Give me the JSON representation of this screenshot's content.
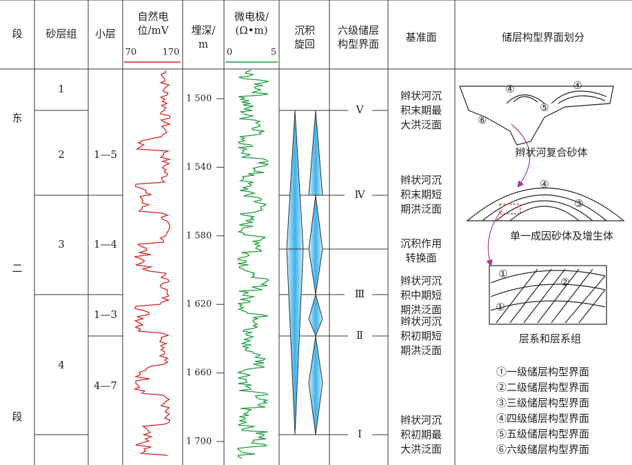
{
  "header": {
    "segment": "段",
    "sand_group": "砂层组",
    "layer": "小层",
    "sp": [
      "自然电",
      "位/mV"
    ],
    "sp_min": "70",
    "sp_max": "170",
    "depth": [
      "埋深/",
      "m"
    ],
    "micro": [
      "微电极/",
      "(Ω•m)"
    ],
    "micro_min": "0",
    "micro_max": "5",
    "cycle": [
      "沉积",
      "旋回"
    ],
    "interface": [
      "六级储层",
      "构型界面"
    ],
    "datum": "基准面",
    "architecture": "储层构型界面划分"
  },
  "segment_chars": [
    "东",
    "二",
    "段"
  ],
  "sand_groups": [
    "1",
    "2",
    "3",
    "4"
  ],
  "layers": [
    "1—5",
    "1—4",
    "1—3",
    "4—7"
  ],
  "depth_ticks": [
    "1 500",
    "1 540",
    "1 580",
    "1 620",
    "1 660",
    "1 700"
  ],
  "interfaces": [
    "Ⅴ",
    "Ⅳ",
    "Ⅲ",
    "Ⅱ",
    "Ⅰ"
  ],
  "datums": [
    [
      "辫状河沉",
      "积末期最",
      "大洪泛面"
    ],
    [
      "辫状河沉",
      "积末期短",
      "期洪泛面"
    ],
    [
      "沉积作用",
      "转换面"
    ],
    [
      "辫状河沉",
      "积中期短",
      "期洪泛面"
    ],
    [
      "辫状河沉",
      "积初期短",
      "期洪泛面"
    ],
    [
      "辫状河沉",
      "积初期最",
      "大洪泛面"
    ]
  ],
  "sketch": {
    "labels_top": [
      "④",
      "④",
      "⑤",
      "⑥"
    ],
    "caption_top": "辫状河复合砂体",
    "labels_mid": [
      "④",
      "③"
    ],
    "caption_mid": "单一成因砂体及增生体",
    "labels_bot": [
      "①",
      "②",
      "①"
    ],
    "caption_bot": "层系和层系组"
  },
  "legend": [
    "①一级储层构型界面",
    "②二级储层构型界面",
    "③三级储层构型界面",
    "④四级储层构型界面",
    "⑤五级储层构型界面",
    "⑥六级储层构型界面"
  ]
}
